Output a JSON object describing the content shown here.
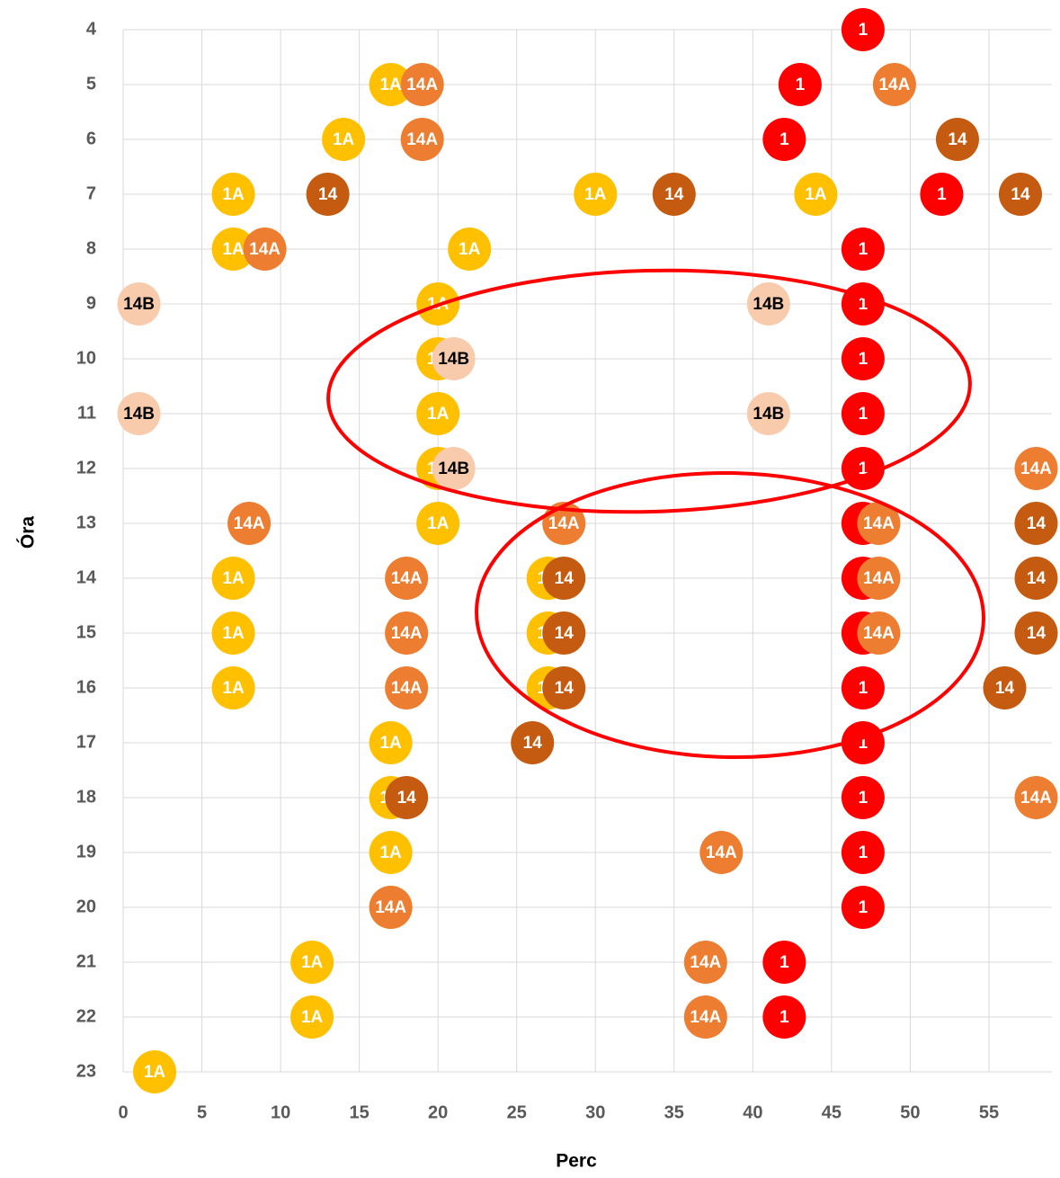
{
  "chart_data": {
    "type": "scatter",
    "x_label": "Perc",
    "y_label": "Óra",
    "xlim": [
      0,
      59
    ],
    "xticks": [
      0,
      5,
      10,
      15,
      20,
      25,
      30,
      35,
      40,
      45,
      50,
      55
    ],
    "ylim": [
      4,
      23
    ],
    "yticks": [
      4,
      5,
      6,
      7,
      8,
      9,
      10,
      11,
      12,
      13,
      14,
      15,
      16,
      17,
      18,
      19,
      20,
      21,
      22,
      23
    ],
    "y_reversed": true,
    "grid": true,
    "series": [
      {
        "name": "1",
        "color": "#ff0000",
        "label_color": "#ffffff",
        "x": [
          47,
          43,
          42,
          52,
          47,
          47,
          47,
          47,
          47,
          47,
          47,
          47,
          47,
          47,
          47,
          47,
          47,
          42,
          42
        ],
        "values": [
          4,
          5,
          6,
          7,
          8,
          9,
          10,
          11,
          12,
          13,
          14,
          15,
          16,
          17,
          18,
          19,
          20,
          21,
          22
        ]
      },
      {
        "name": "1A",
        "color": "#ffc000",
        "label_color": "#ffffff",
        "x": [
          17,
          14,
          7,
          30,
          44,
          7,
          22,
          20,
          20,
          20,
          20,
          20,
          7,
          7,
          7,
          27,
          27,
          27,
          17,
          17,
          17,
          17,
          12,
          12,
          2
        ],
        "values": [
          5,
          6,
          7,
          7,
          7,
          8,
          8,
          9,
          10,
          11,
          12,
          13,
          14,
          15,
          16,
          14,
          15,
          16,
          17,
          18,
          19,
          20,
          21,
          22,
          23
        ]
      },
      {
        "name": "14",
        "color": "#c55a11",
        "label_color": "#ffffff",
        "x": [
          53,
          13,
          35,
          57,
          58,
          28,
          58,
          28,
          58,
          28,
          56,
          26,
          18
        ],
        "values": [
          6,
          7,
          7,
          7,
          13,
          14,
          14,
          15,
          15,
          16,
          16,
          17,
          18
        ]
      },
      {
        "name": "14A",
        "color": "#ed7d31",
        "label_color": "#ffffff",
        "x": [
          19,
          49,
          19,
          9,
          58,
          8,
          28,
          48,
          18,
          48,
          18,
          48,
          18,
          58,
          38,
          17,
          37,
          37
        ],
        "values": [
          5,
          5,
          6,
          8,
          12,
          13,
          13,
          13,
          14,
          14,
          15,
          15,
          16,
          18,
          19,
          20,
          21,
          22
        ]
      },
      {
        "name": "14B",
        "color": "#f8cbad",
        "label_color": "#000000",
        "x": [
          1,
          41,
          21,
          1,
          41,
          21
        ],
        "values": [
          9,
          9,
          10,
          11,
          11,
          12
        ]
      }
    ]
  }
}
